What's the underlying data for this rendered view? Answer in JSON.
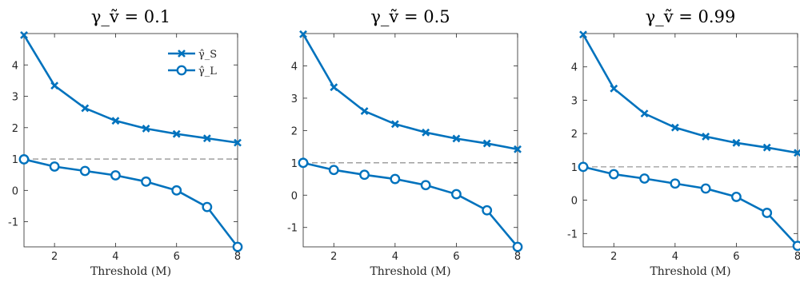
{
  "chart_data": [
    {
      "type": "line",
      "title": "γ_ṽ = 0.1",
      "xlabel": "Threshold (M)",
      "x": [
        1,
        2,
        3,
        4,
        5,
        6,
        7,
        8
      ],
      "xticks": [
        "2",
        "4",
        "6",
        "8"
      ],
      "yticks": [
        "-1",
        "0",
        "1",
        "2",
        "3",
        "4"
      ],
      "xlim": [
        1,
        8
      ],
      "ylim": [
        -1.8,
        5.0
      ],
      "reference_line_y": 1,
      "legend_position": "top-right",
      "series": [
        {
          "name": "γ̂_S",
          "marker": "x",
          "values": [
            4.95,
            3.34,
            2.62,
            2.22,
            1.97,
            1.8,
            1.66,
            1.52
          ]
        },
        {
          "name": "γ̂_L",
          "marker": "o",
          "values": [
            0.99,
            0.76,
            0.62,
            0.48,
            0.28,
            0.0,
            -0.53,
            -1.8
          ]
        }
      ]
    },
    {
      "type": "line",
      "title": "γ_ṽ = 0.5",
      "xlabel": "Threshold (M)",
      "x": [
        1,
        2,
        3,
        4,
        5,
        6,
        7,
        8
      ],
      "xticks": [
        "2",
        "4",
        "6",
        "8"
      ],
      "yticks": [
        "-1",
        "0",
        "1",
        "2",
        "3",
        "4"
      ],
      "xlim": [
        1,
        8
      ],
      "ylim": [
        -1.6,
        5.0
      ],
      "reference_line_y": 1,
      "series": [
        {
          "name": "γ̂_S",
          "marker": "x",
          "values": [
            4.98,
            3.34,
            2.6,
            2.2,
            1.94,
            1.75,
            1.6,
            1.42
          ]
        },
        {
          "name": "γ̂_L",
          "marker": "o",
          "values": [
            1.0,
            0.78,
            0.63,
            0.5,
            0.31,
            0.03,
            -0.47,
            -1.6
          ]
        }
      ]
    },
    {
      "type": "line",
      "title": "γ_ṽ = 0.99",
      "xlabel": "Threshold (M)",
      "x": [
        1,
        2,
        3,
        4,
        5,
        6,
        7,
        8
      ],
      "xticks": [
        "2",
        "4",
        "6",
        "8"
      ],
      "yticks": [
        "-1",
        "0",
        "1",
        "2",
        "3",
        "4"
      ],
      "xlim": [
        1,
        8
      ],
      "ylim": [
        -1.4,
        5.0
      ],
      "reference_line_y": 1,
      "series": [
        {
          "name": "γ̂_S",
          "marker": "x",
          "values": [
            4.97,
            3.35,
            2.6,
            2.18,
            1.91,
            1.72,
            1.58,
            1.42
          ]
        },
        {
          "name": "γ̂_L",
          "marker": "o",
          "values": [
            1.0,
            0.78,
            0.65,
            0.5,
            0.35,
            0.1,
            -0.38,
            -1.37
          ]
        }
      ]
    }
  ],
  "colors": {
    "series": "#0072BD",
    "reference_line": "#808080",
    "axes": "#262626"
  }
}
